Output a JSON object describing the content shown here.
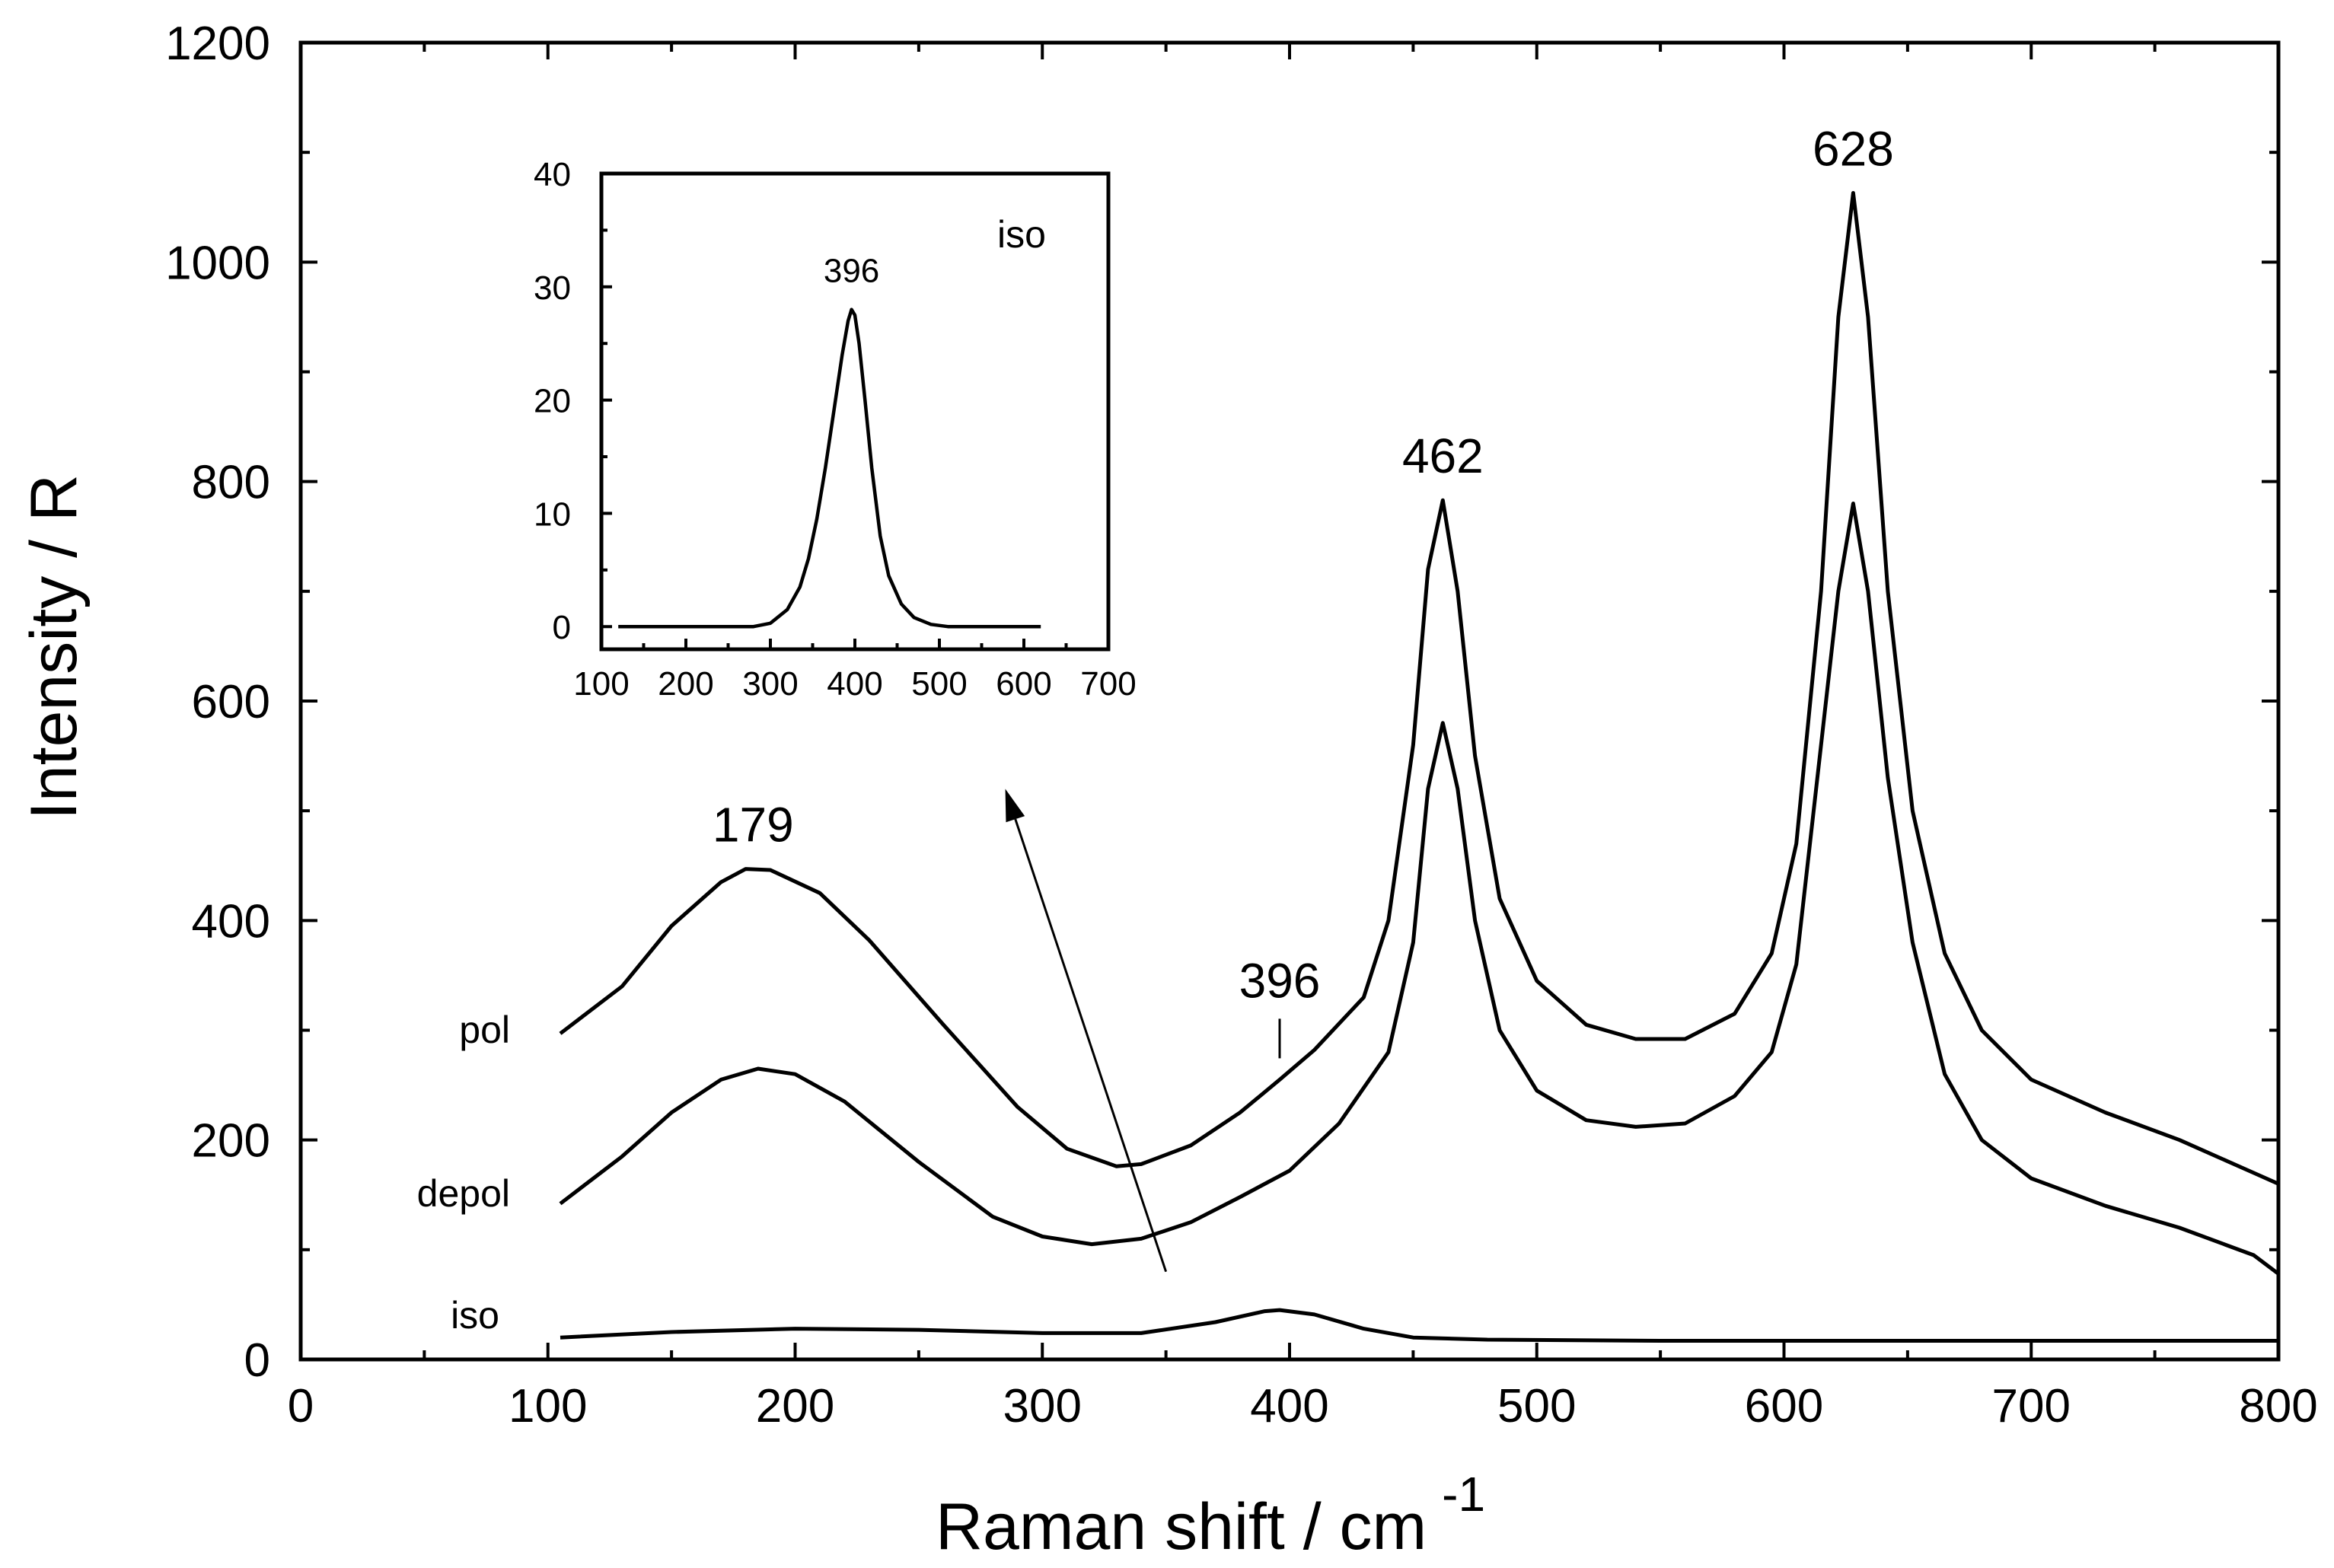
{
  "chart_data": [
    {
      "type": "line",
      "xlabel": "Raman shift / cm",
      "xlabel_superscript": "-1",
      "ylabel": "Intensity / R",
      "xlim": [
        0,
        800
      ],
      "ylim": [
        0,
        1200
      ],
      "x_ticks": [
        "0",
        "100",
        "200",
        "300",
        "400",
        "500",
        "600",
        "700",
        "800"
      ],
      "y_ticks": [
        "0",
        "200",
        "400",
        "600",
        "800",
        "1000",
        "1200"
      ],
      "x_tick_values": [
        0,
        100,
        200,
        300,
        400,
        500,
        600,
        700,
        800
      ],
      "y_tick_values": [
        0,
        200,
        400,
        600,
        800,
        1000,
        1200
      ],
      "series": [
        {
          "name": "pol",
          "x": [
            105,
            130,
            150,
            170,
            180,
            190,
            210,
            230,
            260,
            290,
            310,
            330,
            340,
            360,
            380,
            396,
            410,
            430,
            440,
            450,
            456,
            462,
            468,
            475,
            485,
            500,
            520,
            540,
            560,
            580,
            595,
            605,
            615,
            622,
            628,
            634,
            642,
            652,
            665,
            680,
            700,
            730,
            760,
            790,
            800
          ],
          "values": [
            297,
            340,
            395,
            435,
            447,
            446,
            425,
            382,
            305,
            230,
            192,
            176,
            178,
            195,
            225,
            255,
            282,
            330,
            400,
            560,
            720,
            783,
            700,
            550,
            420,
            345,
            305,
            292,
            292,
            315,
            370,
            470,
            700,
            950,
            1063,
            950,
            700,
            500,
            370,
            300,
            255,
            225,
            200,
            170,
            160
          ]
        },
        {
          "name": "depol",
          "x": [
            105,
            130,
            150,
            170,
            185,
            200,
            220,
            250,
            280,
            300,
            320,
            340,
            360,
            380,
            400,
            420,
            440,
            450,
            456,
            462,
            468,
            475,
            485,
            500,
            520,
            540,
            560,
            580,
            595,
            605,
            615,
            622,
            628,
            634,
            642,
            652,
            665,
            680,
            700,
            730,
            760,
            790,
            800
          ],
          "values": [
            142,
            185,
            225,
            255,
            265,
            260,
            235,
            180,
            130,
            112,
            105,
            110,
            125,
            148,
            172,
            215,
            280,
            380,
            520,
            580,
            520,
            400,
            300,
            245,
            218,
            212,
            215,
            240,
            280,
            360,
            560,
            700,
            780,
            700,
            530,
            380,
            260,
            200,
            165,
            140,
            120,
            95,
            78
          ]
        },
        {
          "name": "iso",
          "x": [
            105,
            150,
            200,
            250,
            300,
            340,
            370,
            390,
            396,
            410,
            430,
            450,
            480,
            550,
            600,
            650,
            700,
            750,
            800
          ],
          "values": [
            20,
            25,
            28,
            27,
            24,
            24,
            34,
            44,
            45,
            41,
            28,
            20,
            18,
            17,
            17,
            17,
            17,
            17,
            17
          ]
        }
      ],
      "series_labels": [
        "pol",
        "depol",
        "iso"
      ],
      "peak_labels": [
        {
          "text": "179",
          "x": 183,
          "y": 447
        },
        {
          "text": "396",
          "x": 396,
          "y": 255
        },
        {
          "text": "462",
          "x": 462,
          "y": 783
        },
        {
          "text": "628",
          "x": 628,
          "y": 1063
        }
      ],
      "arrow": {
        "from": [
          350,
          80
        ],
        "to": [
          285,
          520
        ]
      }
    },
    {
      "type": "line",
      "title": "iso",
      "xlim": [
        100,
        700
      ],
      "ylim": [
        -2,
        40
      ],
      "x_ticks": [
        "100",
        "200",
        "300",
        "400",
        "500",
        "600",
        "700"
      ],
      "y_ticks": [
        "0",
        "10",
        "20",
        "30",
        "40"
      ],
      "x_tick_values": [
        100,
        200,
        300,
        400,
        500,
        600,
        700
      ],
      "y_tick_values": [
        0,
        10,
        20,
        30,
        40
      ],
      "series": [
        {
          "name": "iso",
          "x": [
            120,
            150,
            200,
            250,
            280,
            300,
            320,
            335,
            345,
            355,
            365,
            375,
            385,
            392,
            396,
            400,
            405,
            412,
            420,
            430,
            440,
            455,
            470,
            490,
            510,
            540,
            570,
            600,
            620
          ],
          "values": [
            0,
            0,
            0,
            0,
            0,
            0.3,
            1.5,
            3.5,
            6,
            9.5,
            14,
            19,
            24,
            27,
            28,
            27.5,
            25,
            20,
            14,
            8,
            4.5,
            2,
            0.8,
            0.2,
            0,
            0,
            0,
            0,
            0
          ]
        }
      ],
      "peak_labels": [
        {
          "text": "396",
          "x": 396,
          "y": 28
        }
      ]
    }
  ]
}
